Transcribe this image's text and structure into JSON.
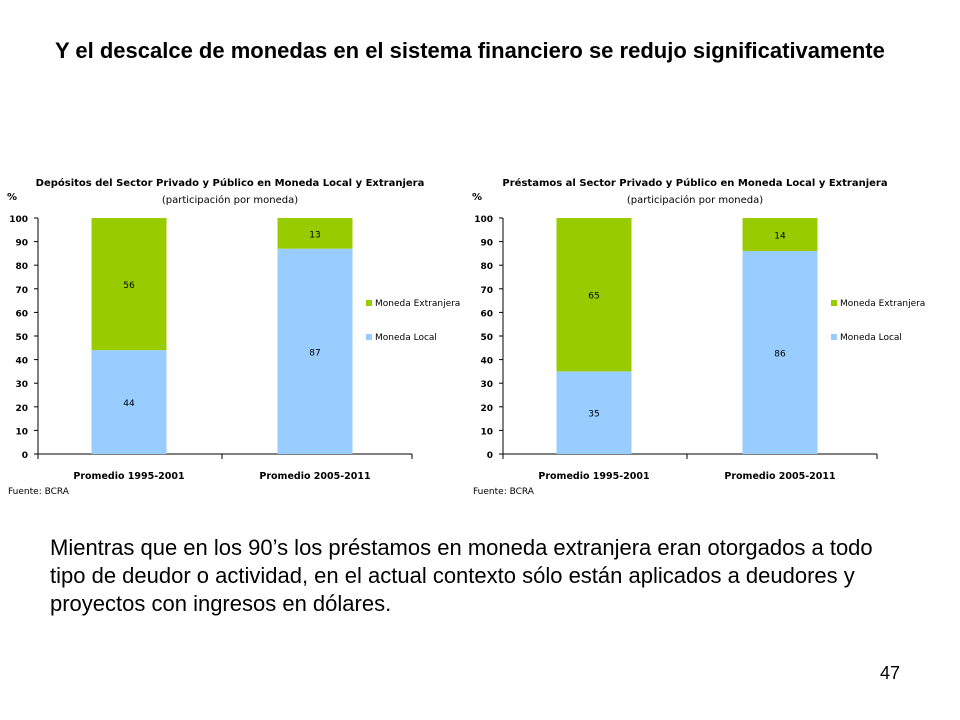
{
  "slide": {
    "title": "Y el descalce de monedas en el sistema financiero se redujo significativamente",
    "body": "Mientras que en los 90’s los préstamos en moneda extranjera eran otorgados a todo tipo de deudor o actividad, en el actual contexto sólo están aplicados a deudores y proyectos con ingresos en dólares.",
    "page_number": "47"
  },
  "colors": {
    "moneda_extranjera": "#99cc00",
    "moneda_local": "#99ccff"
  },
  "chart_data": [
    {
      "type": "bar",
      "stacked": true,
      "title": "Depósitos del Sector Privado y Público en Moneda Local y Extranjera",
      "subtitle": "(participación por moneda)",
      "ylabel": "%",
      "ylim": [
        0,
        100
      ],
      "yticks": [
        "0",
        "10",
        "20",
        "30",
        "40",
        "50",
        "60",
        "70",
        "80",
        "90",
        "100"
      ],
      "categories": [
        "Promedio 1995-2001",
        "Promedio 2005-2011"
      ],
      "series": [
        {
          "name": "Moneda Local",
          "values": [
            44,
            87
          ],
          "labels": [
            "44",
            "87"
          ]
        },
        {
          "name": "Moneda Extranjera",
          "values": [
            56,
            13
          ],
          "labels": [
            "56",
            "13"
          ]
        }
      ],
      "legend": [
        "Moneda Extranjera",
        "Moneda Local"
      ],
      "legend_position": "right",
      "source": "Fuente: BCRA"
    },
    {
      "type": "bar",
      "stacked": true,
      "title": "Préstamos al Sector Privado y Público en Moneda Local y Extranjera",
      "subtitle": "(participación por moneda)",
      "ylabel": "%",
      "ylim": [
        0,
        100
      ],
      "yticks": [
        "0",
        "10",
        "20",
        "30",
        "40",
        "50",
        "60",
        "70",
        "80",
        "90",
        "100"
      ],
      "categories": [
        "Promedio 1995-2001",
        "Promedio 2005-2011"
      ],
      "series": [
        {
          "name": "Moneda Local",
          "values": [
            35,
            86
          ],
          "labels": [
            "35",
            "86"
          ]
        },
        {
          "name": "Moneda Extranjera",
          "values": [
            65,
            14
          ],
          "labels": [
            "65",
            "14"
          ]
        }
      ],
      "legend": [
        "Moneda Extranjera",
        "Moneda Local"
      ],
      "legend_position": "right",
      "source": "Fuente: BCRA"
    }
  ]
}
